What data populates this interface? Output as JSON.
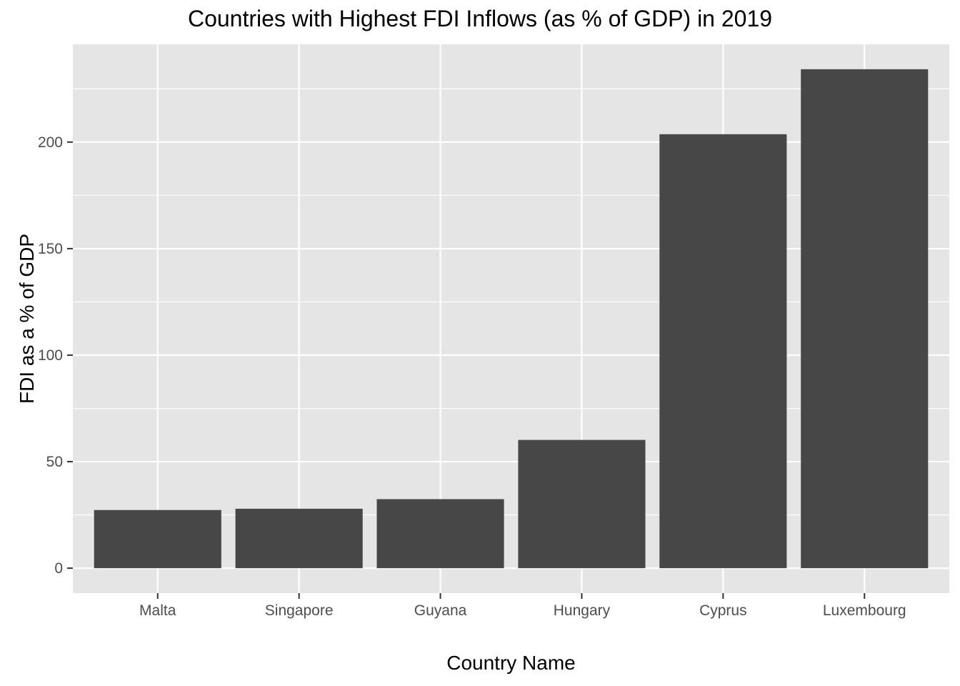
{
  "chart_data": {
    "type": "bar",
    "title": "Countries with Highest FDI Inflows (as % of GDP) in 2019",
    "xlabel": "Country Name",
    "ylabel": "FDI as a % of GDP",
    "categories": [
      "Malta",
      "Singapore",
      "Guyana",
      "Hungary",
      "Cyprus",
      "Luxembourg"
    ],
    "values": [
      27.3,
      27.9,
      32.4,
      60.2,
      203.7,
      234.2
    ],
    "ylim": [
      -11.7,
      245.9
    ],
    "yticks": [
      0,
      50,
      100,
      150,
      200
    ],
    "grid": true,
    "colors": {
      "bar": "#474747",
      "panel": "#e5e5e5",
      "grid": "#ffffff",
      "tick_text": "#4d4d4d"
    }
  }
}
